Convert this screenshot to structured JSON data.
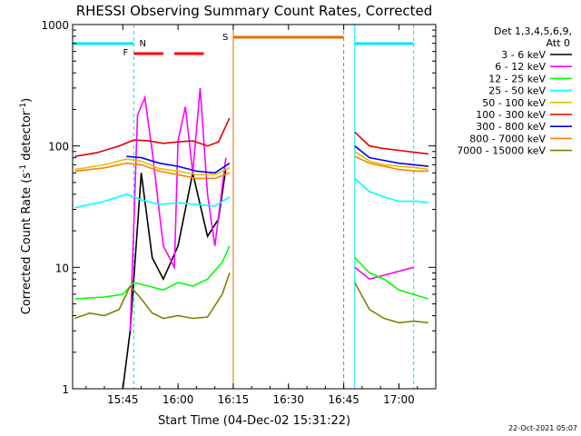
{
  "chart_data": {
    "type": "line",
    "title": "RHESSI Observing Summary Count Rates, Corrected",
    "xlabel": "Start Time (04-Dec-02 15:31:22)",
    "ylabel": "Corrected Count Rate (s⁻¹ detector⁻¹)",
    "ylabel_main": "Corrected Count Rate (s",
    "ylabel_sup1": "-1",
    "ylabel_mid": " detector",
    "ylabel_sup2": "-1",
    "ylabel_end": ")",
    "yscale": "log",
    "ylim": [
      1,
      1000
    ],
    "xlim": [
      "15:31:22",
      "17:10:00"
    ],
    "x_ticks": [
      "15:45",
      "16:00",
      "16:15",
      "16:30",
      "16:45",
      "17:00"
    ],
    "y_ticks": [
      "1",
      "10",
      "100",
      "1000"
    ],
    "legend_title": "Det 1,3,4,5,6,9,",
    "legend_subtitle": "Att 0",
    "legend_position": "right",
    "timestamp": "22-Oct-2021 05:07",
    "markers": {
      "night": "N",
      "flare": "F",
      "saa": "S"
    },
    "series": [
      {
        "name": "3 - 6 keV",
        "color": "#000000",
        "x": [
          "15:45",
          "15:47",
          "15:50",
          "15:53",
          "15:56",
          "16:00",
          "16:04",
          "16:08",
          "16:11",
          "16:13"
        ],
        "values": [
          1,
          3,
          60,
          12,
          8,
          15,
          60,
          18,
          25,
          65
        ]
      },
      {
        "name": "6 - 12 keV",
        "color": "#ff00ff",
        "x": [
          "15:47",
          "15:49",
          "15:51",
          "15:53",
          "15:56",
          "15:59",
          "16:00",
          "16:02",
          "16:04",
          "16:06",
          "16:08",
          "16:10",
          "16:13",
          "16:48",
          "16:52",
          "17:04"
        ],
        "values": [
          3,
          180,
          250,
          90,
          15,
          10,
          110,
          210,
          60,
          300,
          40,
          15,
          80,
          10,
          8,
          10
        ]
      },
      {
        "name": "12 - 25 keV",
        "color": "#00ff00",
        "x": [
          "15:32",
          "15:40",
          "15:45",
          "15:48",
          "15:52",
          "15:56",
          "16:00",
          "16:04",
          "16:08",
          "16:12",
          "16:14",
          "16:48",
          "16:52",
          "16:56",
          "17:00",
          "17:08"
        ],
        "values": [
          5.5,
          5.7,
          6.0,
          7.5,
          7.0,
          6.5,
          7.5,
          7.0,
          8.0,
          11,
          15,
          12,
          9,
          8,
          6.5,
          5.5
        ]
      },
      {
        "name": "25 - 50 keV",
        "color": "#00ffff",
        "x": [
          "15:32",
          "15:40",
          "15:46",
          "15:50",
          "15:55",
          "16:00",
          "16:05",
          "16:10",
          "16:14",
          "16:48",
          "16:52",
          "16:56",
          "17:00",
          "17:05",
          "17:08"
        ],
        "values": [
          31,
          35,
          40,
          36,
          33,
          34,
          33,
          32,
          38,
          54,
          42,
          38,
          35,
          35,
          34
        ]
      },
      {
        "name": "50 - 100 keV",
        "color": "#e0c000",
        "x": [
          "15:32",
          "15:40",
          "15:46",
          "15:50",
          "15:55",
          "16:00",
          "16:05",
          "16:10",
          "16:14",
          "16:48",
          "16:52",
          "16:56",
          "17:00",
          "17:05",
          "17:08"
        ],
        "values": [
          64,
          70,
          78,
          75,
          65,
          62,
          58,
          58,
          66,
          90,
          75,
          70,
          68,
          66,
          64
        ]
      },
      {
        "name": "100 - 300 keV",
        "color": "#e00000",
        "x": [
          "15:32",
          "15:38",
          "15:44",
          "15:48",
          "15:52",
          "15:56",
          "16:00",
          "16:04",
          "16:08",
          "16:11",
          "16:14",
          "16:48",
          "16:52",
          "16:56",
          "17:00",
          "17:05",
          "17:08"
        ],
        "values": [
          82,
          88,
          100,
          112,
          110,
          105,
          108,
          110,
          100,
          108,
          170,
          130,
          100,
          95,
          92,
          88,
          86
        ]
      },
      {
        "name": "300 - 800 keV",
        "color": "#0000ff",
        "x": [
          "15:46",
          "15:50",
          "15:55",
          "16:00",
          "16:05",
          "16:10",
          "16:14",
          "16:48",
          "16:52",
          "16:56",
          "17:00",
          "17:08"
        ],
        "values": [
          82,
          80,
          72,
          68,
          62,
          60,
          72,
          100,
          80,
          76,
          72,
          68
        ]
      },
      {
        "name": "800 - 7000 keV",
        "color": "#ff8000",
        "x": [
          "15:32",
          "15:40",
          "15:46",
          "15:50",
          "15:55",
          "16:00",
          "16:05",
          "16:10",
          "16:14",
          "16:48",
          "16:52",
          "16:56",
          "17:00",
          "17:05",
          "17:08"
        ],
        "values": [
          62,
          66,
          72,
          70,
          62,
          58,
          54,
          54,
          60,
          82,
          72,
          68,
          64,
          62,
          62
        ]
      },
      {
        "name": "7000 - 15000 keV",
        "color": "#808000",
        "x": [
          "15:32",
          "15:36",
          "15:40",
          "15:44",
          "15:47",
          "15:50",
          "15:53",
          "15:56",
          "16:00",
          "16:04",
          "16:08",
          "16:12",
          "16:14",
          "16:48",
          "16:52",
          "16:56",
          "17:00",
          "17:04",
          "17:08"
        ],
        "values": [
          3.8,
          4.2,
          4.0,
          4.5,
          7.0,
          5.5,
          4.2,
          3.8,
          4.0,
          3.8,
          3.9,
          6.0,
          9.0,
          7.5,
          4.5,
          3.8,
          3.5,
          3.6,
          3.5
        ]
      }
    ],
    "intervals": {
      "night": [
        [
          "15:31:22",
          "15:48"
        ],
        [
          "16:48",
          "17:04"
        ]
      ],
      "flare": [
        [
          "15:48",
          "15:56"
        ],
        [
          "15:59",
          "16:07"
        ]
      ],
      "saa": [
        [
          "16:15",
          "16:45"
        ]
      ]
    }
  }
}
